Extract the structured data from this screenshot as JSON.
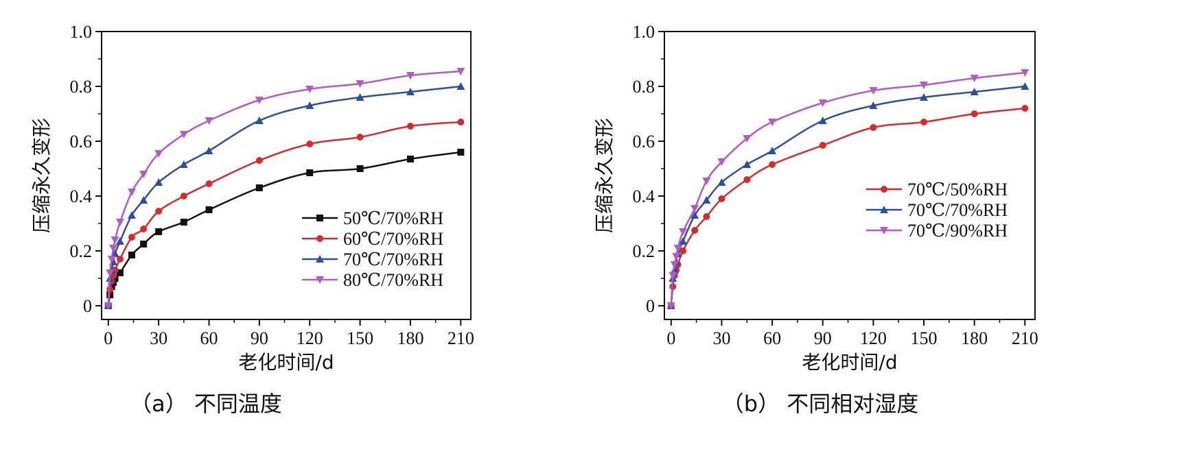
{
  "chart_data": [
    {
      "type": "line",
      "caption": "（a） 不同温度",
      "xlabel": "老化时间/d",
      "ylabel": "压缩永久变形",
      "xlim": [
        -4,
        216
      ],
      "ylim": [
        -0.05,
        1.0
      ],
      "xticks": [
        0,
        30,
        60,
        90,
        120,
        150,
        180,
        210
      ],
      "yticks": [
        0,
        0.2,
        0.4,
        0.6,
        0.8,
        1.0
      ],
      "ytick_labels": [
        "0",
        "0.2",
        "0.4",
        "0.6",
        "0.8",
        "1.0"
      ],
      "legend_position": "lower-right",
      "series": [
        {
          "name": "50℃/70%RH",
          "color": "#111111",
          "marker": "square",
          "x": [
            0,
            1,
            2,
            3,
            4,
            7,
            14,
            21,
            30,
            45,
            60,
            90,
            120,
            150,
            180,
            210
          ],
          "y": [
            0,
            0.04,
            0.07,
            0.085,
            0.1,
            0.12,
            0.185,
            0.225,
            0.27,
            0.305,
            0.35,
            0.43,
            0.485,
            0.5,
            0.535,
            0.56
          ]
        },
        {
          "name": "60℃/70%RH",
          "color": "#d62b2b",
          "marker": "circle",
          "x": [
            0,
            1,
            2,
            3,
            4,
            7,
            14,
            21,
            30,
            45,
            60,
            90,
            120,
            150,
            180,
            210
          ],
          "y": [
            0,
            0.06,
            0.09,
            0.11,
            0.13,
            0.17,
            0.25,
            0.28,
            0.345,
            0.4,
            0.445,
            0.53,
            0.59,
            0.615,
            0.655,
            0.67
          ]
        },
        {
          "name": "70℃/70%RH",
          "color": "#2d4f9e",
          "marker": "triangle-up",
          "x": [
            0,
            1,
            2,
            3,
            4,
            7,
            14,
            21,
            30,
            45,
            60,
            90,
            120,
            150,
            180,
            210
          ],
          "y": [
            0,
            0.1,
            0.13,
            0.16,
            0.19,
            0.235,
            0.33,
            0.385,
            0.45,
            0.515,
            0.565,
            0.675,
            0.73,
            0.76,
            0.78,
            0.8
          ]
        },
        {
          "name": "80℃/70%RH",
          "color": "#b35bc2",
          "marker": "triangle-down",
          "x": [
            0,
            1,
            2,
            3,
            4,
            7,
            14,
            21,
            30,
            45,
            60,
            90,
            120,
            150,
            180,
            210
          ],
          "y": [
            0,
            0.12,
            0.17,
            0.21,
            0.24,
            0.305,
            0.415,
            0.48,
            0.555,
            0.625,
            0.675,
            0.75,
            0.79,
            0.81,
            0.84,
            0.855
          ]
        }
      ]
    },
    {
      "type": "line",
      "caption": "（b） 不同相对湿度",
      "xlabel": "老化时间/d",
      "ylabel": "压缩永久变形",
      "xlim": [
        -4,
        216
      ],
      "ylim": [
        -0.05,
        1.0
      ],
      "xticks": [
        0,
        30,
        60,
        90,
        120,
        150,
        180,
        210
      ],
      "yticks": [
        0,
        0.2,
        0.4,
        0.6,
        0.8,
        1.0
      ],
      "ytick_labels": [
        "0",
        "0.2",
        "0.4",
        "0.6",
        "0.8",
        "1.0"
      ],
      "legend_position": "center-right",
      "series": [
        {
          "name": "70℃/50%RH",
          "color": "#d62b2b",
          "marker": "circle",
          "x": [
            0,
            1,
            2,
            3,
            4,
            7,
            14,
            21,
            30,
            45,
            60,
            90,
            120,
            150,
            180,
            210
          ],
          "y": [
            0,
            0.07,
            0.11,
            0.13,
            0.15,
            0.2,
            0.275,
            0.325,
            0.39,
            0.46,
            0.515,
            0.585,
            0.65,
            0.67,
            0.7,
            0.72
          ]
        },
        {
          "name": "70℃/70%RH",
          "color": "#2d4f9e",
          "marker": "triangle-up",
          "x": [
            0,
            1,
            2,
            3,
            4,
            7,
            14,
            21,
            30,
            45,
            60,
            90,
            120,
            150,
            180,
            210
          ],
          "y": [
            0,
            0.1,
            0.13,
            0.16,
            0.19,
            0.235,
            0.33,
            0.385,
            0.45,
            0.515,
            0.565,
            0.675,
            0.73,
            0.76,
            0.78,
            0.8
          ]
        },
        {
          "name": "70℃/90%RH",
          "color": "#b35bc2",
          "marker": "triangle-down",
          "x": [
            0,
            1,
            2,
            3,
            4,
            7,
            14,
            21,
            30,
            45,
            60,
            90,
            120,
            150,
            180,
            210
          ],
          "y": [
            0,
            0.11,
            0.15,
            0.18,
            0.21,
            0.27,
            0.355,
            0.455,
            0.525,
            0.61,
            0.67,
            0.74,
            0.785,
            0.805,
            0.83,
            0.85
          ]
        }
      ]
    }
  ]
}
